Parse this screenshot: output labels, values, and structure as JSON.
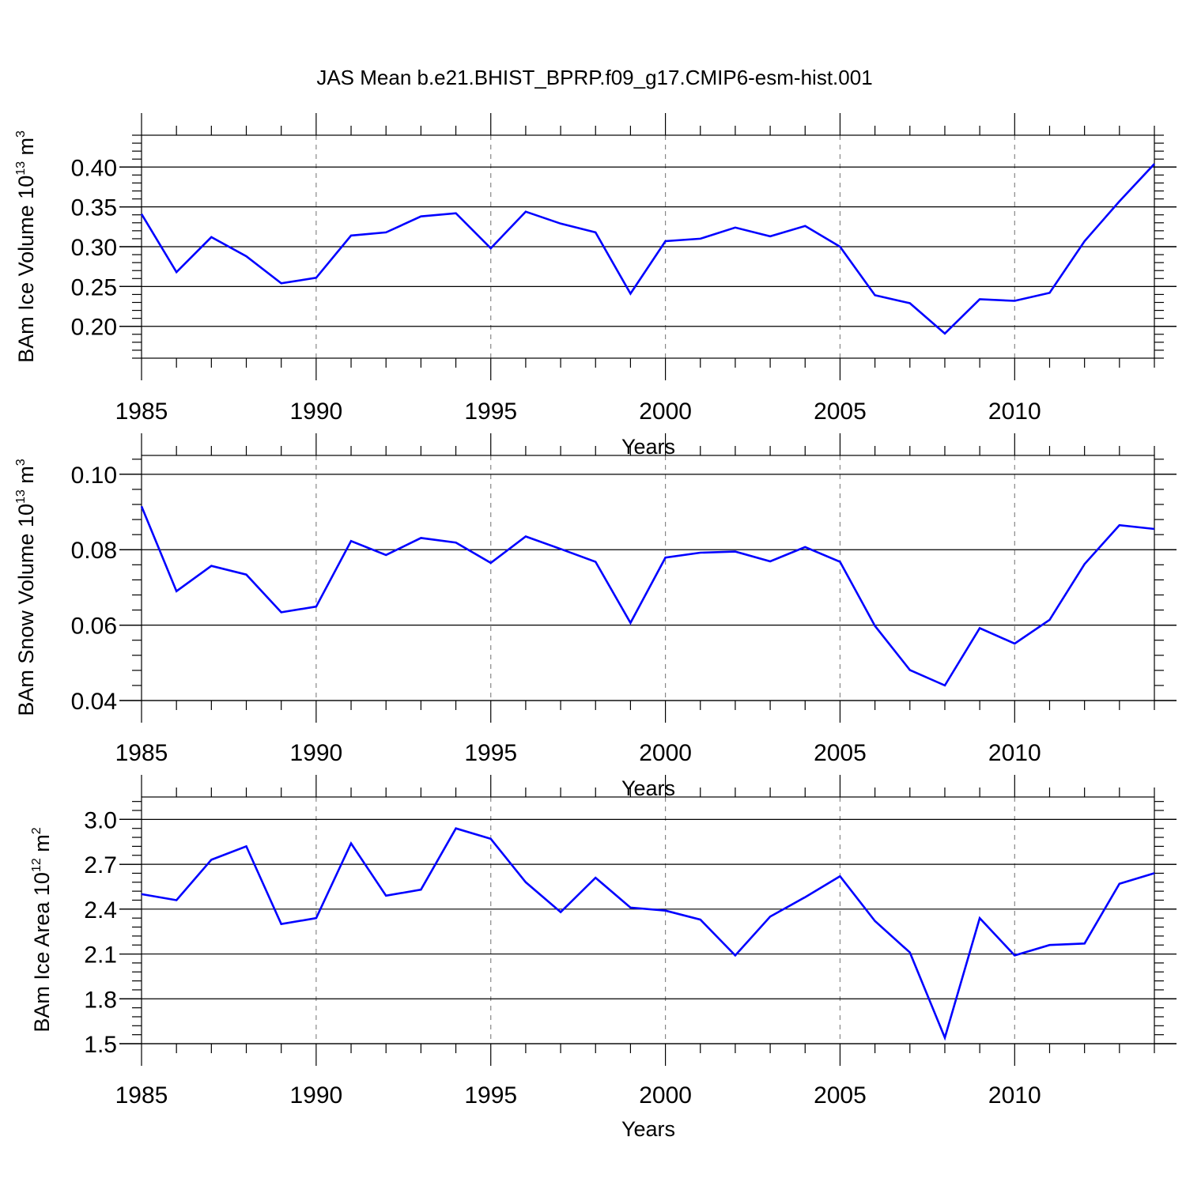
{
  "colors": {
    "line": "#0000ff",
    "axis": "#000000",
    "grid": "#888888",
    "background": "#ffffff"
  },
  "title": "JAS Mean b.e21.BHIST_BPRP.f09_g17.CMIP6-esm-hist.001",
  "chart_data": [
    {
      "type": "line",
      "title": "JAS Mean b.e21.BHIST_BPRP.f09_g17.CMIP6-esm-hist.001",
      "ylabel_main": "BAm Ice Volume 10",
      "ylabel_exp": "13",
      "ylabel_unit": " m",
      "ylabel_unit_exp": "3",
      "xlabel": "",
      "xlim": [
        1985,
        2014
      ],
      "ylim": [
        0.16,
        0.44
      ],
      "yticks": [
        0.2,
        0.25,
        0.3,
        0.35,
        0.4
      ],
      "ytick_labels": [
        "0.20",
        "0.25",
        "0.30",
        "0.35",
        "0.40"
      ],
      "xticks": [
        1985,
        1990,
        1995,
        2000,
        2005,
        2010
      ],
      "xtick_labels": [
        "1985",
        "1990",
        "1995",
        "2000",
        "2005",
        "2010"
      ],
      "grid": "vertical dashed at major x ticks",
      "series": [
        {
          "name": "BAm Ice Volume",
          "x": [
            1985,
            1986,
            1987,
            1988,
            1989,
            1990,
            1991,
            1992,
            1993,
            1994,
            1995,
            1996,
            1997,
            1998,
            1999,
            2000,
            2001,
            2002,
            2003,
            2004,
            2005,
            2006,
            2007,
            2008,
            2009,
            2010,
            2011,
            2012,
            2013,
            2014
          ],
          "values": [
            0.341,
            0.268,
            0.312,
            0.288,
            0.254,
            0.261,
            0.314,
            0.318,
            0.338,
            0.342,
            0.298,
            0.344,
            0.329,
            0.318,
            0.241,
            0.307,
            0.31,
            0.324,
            0.313,
            0.326,
            0.3,
            0.239,
            0.229,
            0.191,
            0.234,
            0.232,
            0.242,
            0.307,
            0.357,
            0.404
          ]
        }
      ]
    },
    {
      "type": "line",
      "title": "",
      "ylabel_main": "BAm Snow Volume 10",
      "ylabel_exp": "13",
      "ylabel_unit": " m",
      "ylabel_unit_exp": "3",
      "xlabel": "Years",
      "xlim": [
        1985,
        2014
      ],
      "ylim": [
        0.04,
        0.105
      ],
      "yticks": [
        0.04,
        0.06,
        0.08,
        0.1
      ],
      "ytick_labels": [
        "0.04",
        "0.06",
        "0.08",
        "0.10"
      ],
      "xticks": [
        1985,
        1990,
        1995,
        2000,
        2005,
        2010
      ],
      "xtick_labels": [
        "1985",
        "1990",
        "1995",
        "2000",
        "2005",
        "2010"
      ],
      "grid": "vertical dashed at major x ticks",
      "series": [
        {
          "name": "BAm Snow Volume",
          "x": [
            1985,
            1986,
            1987,
            1988,
            1989,
            1990,
            1991,
            1992,
            1993,
            1994,
            1995,
            1996,
            1997,
            1998,
            1999,
            2000,
            2001,
            2002,
            2003,
            2004,
            2005,
            2006,
            2007,
            2008,
            2009,
            2010,
            2011,
            2012,
            2013,
            2014
          ],
          "values": [
            0.0915,
            0.069,
            0.0757,
            0.0734,
            0.0634,
            0.0649,
            0.0823,
            0.0786,
            0.0831,
            0.0819,
            0.0765,
            0.0835,
            0.0802,
            0.0768,
            0.0606,
            0.0779,
            0.0792,
            0.0795,
            0.0769,
            0.0807,
            0.0768,
            0.0598,
            0.0481,
            0.044,
            0.0592,
            0.0551,
            0.0614,
            0.0762,
            0.0865,
            0.0855
          ]
        }
      ]
    },
    {
      "type": "line",
      "title": "",
      "ylabel_main": "BAm Ice Area 10",
      "ylabel_exp": "12",
      "ylabel_unit": " m",
      "ylabel_unit_exp": "2",
      "xlabel": "Years",
      "xlim": [
        1985,
        2014
      ],
      "ylim": [
        1.5,
        3.15
      ],
      "yticks": [
        1.5,
        1.8,
        2.1,
        2.4,
        2.7,
        3.0
      ],
      "ytick_labels": [
        "1.5",
        "1.8",
        "2.1",
        "2.4",
        "2.7",
        "3.0"
      ],
      "xticks": [
        1985,
        1990,
        1995,
        2000,
        2005,
        2010
      ],
      "xtick_labels": [
        "1985",
        "1990",
        "1995",
        "2000",
        "2005",
        "2010"
      ],
      "grid": "vertical dashed at major x ticks",
      "series": [
        {
          "name": "BAm Ice Area",
          "x": [
            1985,
            1986,
            1987,
            1988,
            1989,
            1990,
            1991,
            1992,
            1993,
            1994,
            1995,
            1996,
            1997,
            1998,
            1999,
            2000,
            2001,
            2002,
            2003,
            2004,
            2005,
            2006,
            2007,
            2008,
            2009,
            2010,
            2011,
            2012,
            2013,
            2014
          ],
          "values": [
            2.5,
            2.46,
            2.73,
            2.82,
            2.3,
            2.34,
            2.84,
            2.49,
            2.53,
            2.94,
            2.87,
            2.58,
            2.38,
            2.61,
            2.41,
            2.39,
            2.33,
            2.09,
            2.35,
            2.48,
            2.62,
            2.32,
            2.11,
            1.54,
            2.34,
            2.09,
            2.16,
            2.17,
            2.57,
            2.64
          ]
        }
      ]
    }
  ],
  "xlabel_top": "Years"
}
